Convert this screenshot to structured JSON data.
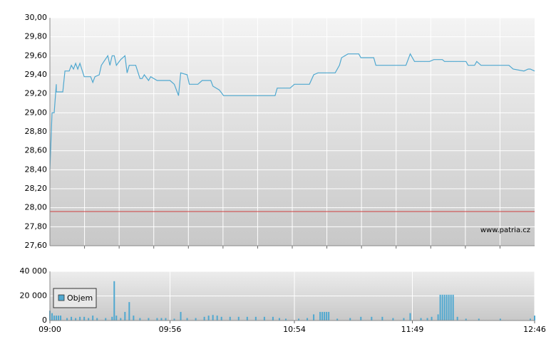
{
  "chart_data": [
    {
      "type": "line",
      "color": "#4fa8d0",
      "x": [
        "09:00",
        "09:01",
        "09:02",
        "09:03",
        "09:03",
        "09:06",
        "09:07",
        "09:09",
        "09:10",
        "09:11",
        "09:12",
        "09:13",
        "09:14",
        "09:16",
        "09:19",
        "09:20",
        "09:21",
        "09:23",
        "09:24",
        "09:27",
        "09:28",
        "09:29",
        "09:30",
        "09:31",
        "09:33",
        "09:35",
        "09:36",
        "09:37",
        "09:40",
        "09:42",
        "09:43",
        "09:44",
        "09:46",
        "09:47",
        "09:50",
        "09:51",
        "09:56",
        "09:58",
        "10:00",
        "10:01",
        "10:04",
        "10:05",
        "10:09",
        "10:11",
        "10:15",
        "10:16",
        "10:19",
        "10:21",
        "10:45",
        "10:46",
        "10:52",
        "10:54",
        "11:01",
        "11:03",
        "11:05",
        "11:08",
        "11:13",
        "11:15",
        "11:16",
        "11:19",
        "11:24",
        "11:25",
        "11:31",
        "11:32",
        "11:46",
        "11:48",
        "11:50",
        "11:57",
        "11:59",
        "12:03",
        "12:04",
        "12:14",
        "12:15",
        "12:18",
        "12:19",
        "12:21",
        "12:34",
        "12:36",
        "12:41",
        "12:43",
        "12:44",
        "12:46"
      ],
      "values": [
        28.4,
        29.0,
        29.0,
        29.3,
        29.22,
        29.22,
        29.44,
        29.44,
        29.5,
        29.46,
        29.52,
        29.46,
        29.52,
        29.38,
        29.38,
        29.32,
        29.38,
        29.4,
        29.5,
        29.6,
        29.5,
        29.6,
        29.6,
        29.5,
        29.56,
        29.6,
        29.42,
        29.5,
        29.5,
        29.36,
        29.36,
        29.4,
        29.34,
        29.38,
        29.34,
        29.34,
        29.34,
        29.3,
        29.18,
        29.42,
        29.4,
        29.3,
        29.3,
        29.34,
        29.34,
        29.28,
        29.24,
        29.18,
        29.18,
        29.26,
        29.26,
        29.3,
        29.3,
        29.4,
        29.42,
        29.42,
        29.42,
        29.5,
        29.58,
        29.62,
        29.62,
        29.58,
        29.58,
        29.5,
        29.5,
        29.62,
        29.54,
        29.54,
        29.56,
        29.56,
        29.54,
        29.54,
        29.5,
        29.5,
        29.54,
        29.5,
        29.5,
        29.46,
        29.44,
        29.46,
        29.46,
        29.44
      ],
      "xlim": [
        "09:00",
        "12:46"
      ],
      "ylim": [
        27.6,
        30.0
      ],
      "yticks": [
        {
          "value": 27.6,
          "label": "27,60"
        },
        {
          "value": 27.8,
          "label": "27,80"
        },
        {
          "value": 28.0,
          "label": "28,00"
        },
        {
          "value": 28.2,
          "label": "28,20"
        },
        {
          "value": 28.4,
          "label": "28,40"
        },
        {
          "value": 28.6,
          "label": "28,60"
        },
        {
          "value": 28.8,
          "label": "28,80"
        },
        {
          "value": 29.0,
          "label": "29,00"
        },
        {
          "value": 29.2,
          "label": "29,20"
        },
        {
          "value": 29.4,
          "label": "29,40"
        },
        {
          "value": 29.6,
          "label": "29,60"
        },
        {
          "value": 29.8,
          "label": "29,80"
        },
        {
          "value": 30.0,
          "label": "30,00"
        }
      ],
      "reference_line": {
        "value": 27.96,
        "color": "#d04040"
      },
      "annotation": "www.patria.cz",
      "grid": true
    },
    {
      "type": "bar",
      "color": "#4fa8d0",
      "series": [
        {
          "name": "Objem",
          "color": "#4fa8d0",
          "x": [
            "09:00",
            "09:01",
            "09:02",
            "09:03",
            "09:04",
            "09:05",
            "09:08",
            "09:10",
            "09:12",
            "09:14",
            "09:16",
            "09:18",
            "09:20",
            "09:22",
            "09:26",
            "09:29",
            "09:30",
            "09:31",
            "09:33",
            "09:35",
            "09:37",
            "09:39",
            "09:42",
            "09:46",
            "09:50",
            "09:52",
            "09:54",
            "09:58",
            "10:01",
            "10:04",
            "10:08",
            "10:12",
            "10:14",
            "10:16",
            "10:18",
            "10:20",
            "10:24",
            "10:28",
            "10:32",
            "10:36",
            "10:40",
            "10:44",
            "10:47",
            "10:50",
            "10:56",
            "11:00",
            "11:03",
            "11:06",
            "11:07",
            "11:08",
            "11:09",
            "11:10",
            "11:14",
            "11:20",
            "11:25",
            "11:30",
            "11:35",
            "11:40",
            "11:45",
            "11:48",
            "11:53",
            "11:56",
            "11:58",
            "12:01",
            "12:02",
            "12:03",
            "12:04",
            "12:05",
            "12:06",
            "12:07",
            "12:08",
            "12:10",
            "12:14",
            "12:20",
            "12:30",
            "12:44",
            "12:46"
          ],
          "values": [
            8000,
            6000,
            4000,
            4000,
            4000,
            4000,
            2000,
            3000,
            2000,
            3000,
            3000,
            2000,
            4000,
            2000,
            2000,
            3000,
            32000,
            4000,
            2000,
            7000,
            15000,
            4000,
            2000,
            2000,
            2000,
            2000,
            2000,
            1500,
            7000,
            2000,
            2000,
            3000,
            4000,
            4500,
            4000,
            3000,
            3000,
            3000,
            3000,
            3000,
            3000,
            3000,
            2000,
            1500,
            1500,
            2000,
            5000,
            7000,
            7000,
            7000,
            7000,
            7000,
            1500,
            2000,
            3000,
            3000,
            3000,
            2000,
            2000,
            6000,
            2000,
            2000,
            3000,
            5000,
            21000,
            21000,
            21000,
            21000,
            21000,
            21000,
            21000,
            3000,
            1500,
            1500,
            1500,
            1500,
            4000
          ]
        }
      ],
      "xlim": [
        "09:00",
        "12:46"
      ],
      "xticks": [
        "09:00",
        "09:56",
        "10:54",
        "11:49",
        "12:46"
      ],
      "ylim": [
        0,
        40000
      ],
      "yticks": [
        0,
        {
          "value": 20000,
          "label": "20 000"
        },
        {
          "value": 40000,
          "label": "40 000"
        }
      ],
      "grid": true
    }
  ]
}
